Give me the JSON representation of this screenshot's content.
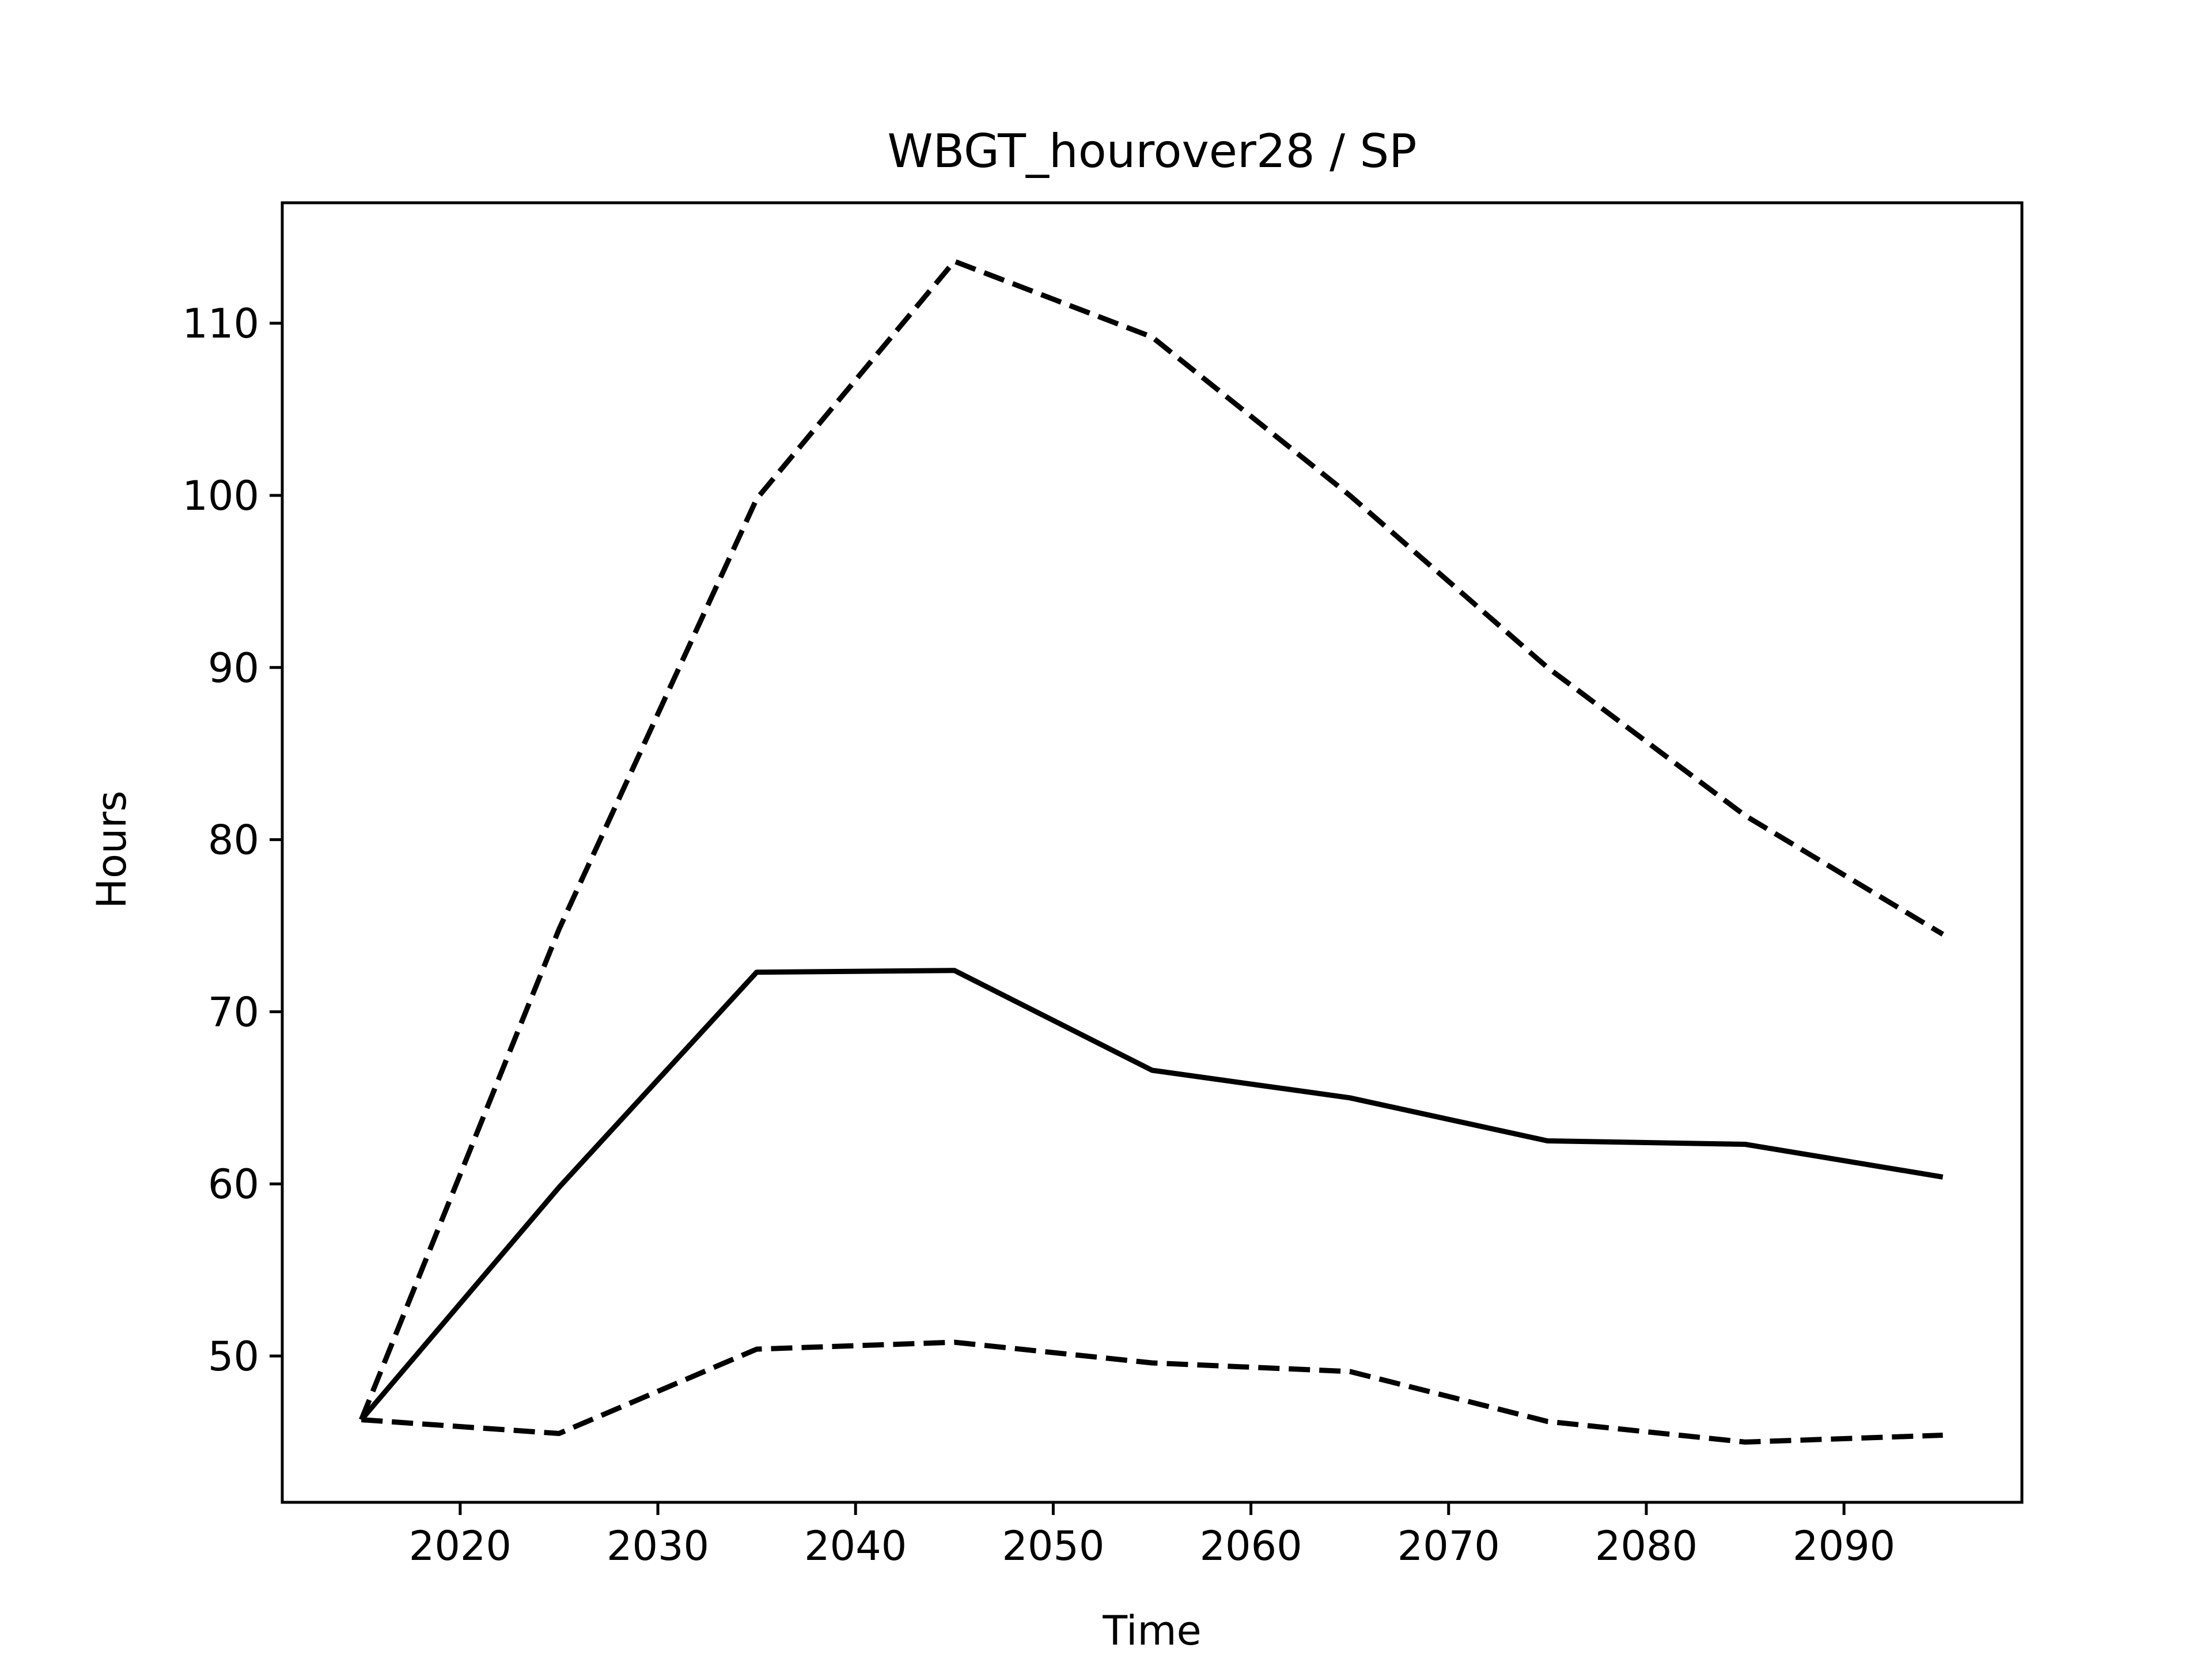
{
  "chart_data": {
    "type": "line",
    "title": "WBGT_hourover28 / SP",
    "xlabel": "Time",
    "ylabel": "Hours",
    "xlim": [
      2011,
      2099
    ],
    "ylim": [
      41.5,
      117
    ],
    "x_ticks": [
      2020,
      2030,
      2040,
      2050,
      2060,
      2070,
      2080,
      2090
    ],
    "y_ticks": [
      50,
      60,
      70,
      80,
      90,
      100,
      110
    ],
    "grid": false,
    "x": [
      2015,
      2025,
      2035,
      2045,
      2055,
      2065,
      2075,
      2085,
      2095
    ],
    "series": [
      {
        "style": "dashed",
        "color": "#000000",
        "values": [
          46.3,
          74.8,
          99.8,
          113.6,
          109.2,
          100.0,
          90.0,
          81.4,
          74.5
        ]
      },
      {
        "style": "solid",
        "color": "#000000",
        "values": [
          46.3,
          59.8,
          72.3,
          72.4,
          66.6,
          65.0,
          62.5,
          62.3,
          60.4
        ]
      },
      {
        "style": "dashed",
        "color": "#000000",
        "values": [
          46.3,
          45.5,
          50.4,
          50.8,
          49.6,
          49.1,
          46.2,
          45.0,
          45.4
        ]
      }
    ]
  }
}
